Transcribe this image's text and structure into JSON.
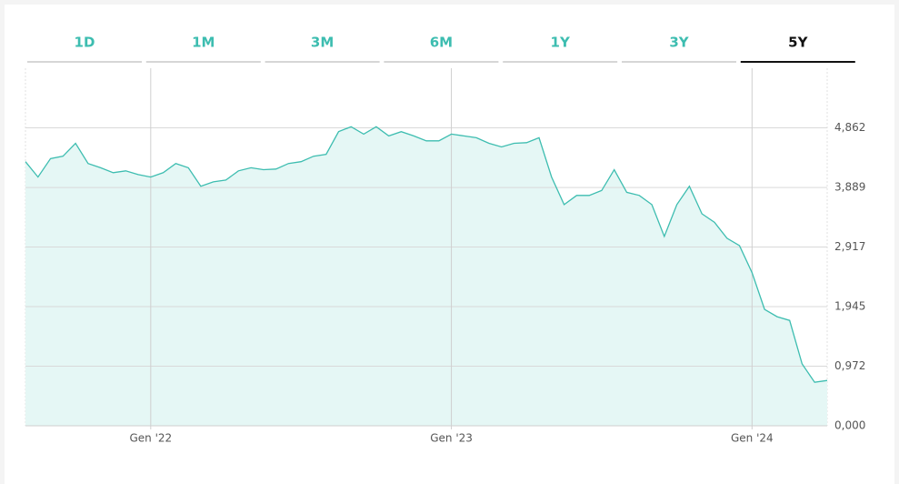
{
  "tabs": {
    "items": [
      "1D",
      "1M",
      "3M",
      "6M",
      "1Y",
      "3Y",
      "5Y"
    ],
    "selected": "5Y"
  },
  "chart_data": {
    "type": "area",
    "categories": [
      null,
      null,
      null,
      null,
      null,
      null,
      null,
      null,
      null,
      null,
      "Gen '22",
      null,
      null,
      null,
      null,
      null,
      null,
      null,
      null,
      null,
      null,
      null,
      null,
      null,
      null,
      null,
      null,
      null,
      null,
      null,
      null,
      null,
      null,
      null,
      "Gen '23",
      null,
      null,
      null,
      null,
      null,
      null,
      null,
      null,
      null,
      null,
      null,
      null,
      null,
      null,
      null,
      null,
      null,
      null,
      null,
      null,
      null,
      null,
      null,
      "Gen '24",
      null,
      null,
      null,
      null,
      null,
      null
    ],
    "values": [
      4.31,
      4.06,
      4.36,
      4.4,
      4.61,
      4.28,
      4.21,
      4.13,
      4.16,
      4.1,
      4.06,
      4.13,
      4.28,
      4.21,
      3.91,
      3.98,
      4.01,
      4.16,
      4.21,
      4.18,
      4.19,
      4.28,
      4.31,
      4.4,
      4.43,
      4.8,
      4.88,
      4.76,
      4.88,
      4.73,
      4.8,
      4.73,
      4.65,
      4.65,
      4.76,
      4.73,
      4.7,
      4.61,
      4.55,
      4.61,
      4.62,
      4.7,
      4.06,
      3.61,
      3.76,
      3.76,
      3.84,
      4.18,
      3.81,
      3.76,
      3.61,
      3.09,
      3.61,
      3.91,
      3.46,
      3.32,
      3.06,
      2.94,
      2.5,
      1.9,
      1.78,
      1.72,
      1.01,
      0.71,
      0.74
    ],
    "color": "#3dbdb0",
    "area_color": "#e5f7f5",
    "ylim": [
      0,
      5.835
    ],
    "yticks": [
      {
        "value": 0,
        "label": "0,000"
      },
      {
        "value": 0.972,
        "label": "0,972"
      },
      {
        "value": 1.945,
        "label": "1,945"
      },
      {
        "value": 2.917,
        "label": "2,917"
      },
      {
        "value": 3.889,
        "label": "3,889"
      },
      {
        "value": 4.862,
        "label": "4,862"
      }
    ],
    "grid": true
  }
}
